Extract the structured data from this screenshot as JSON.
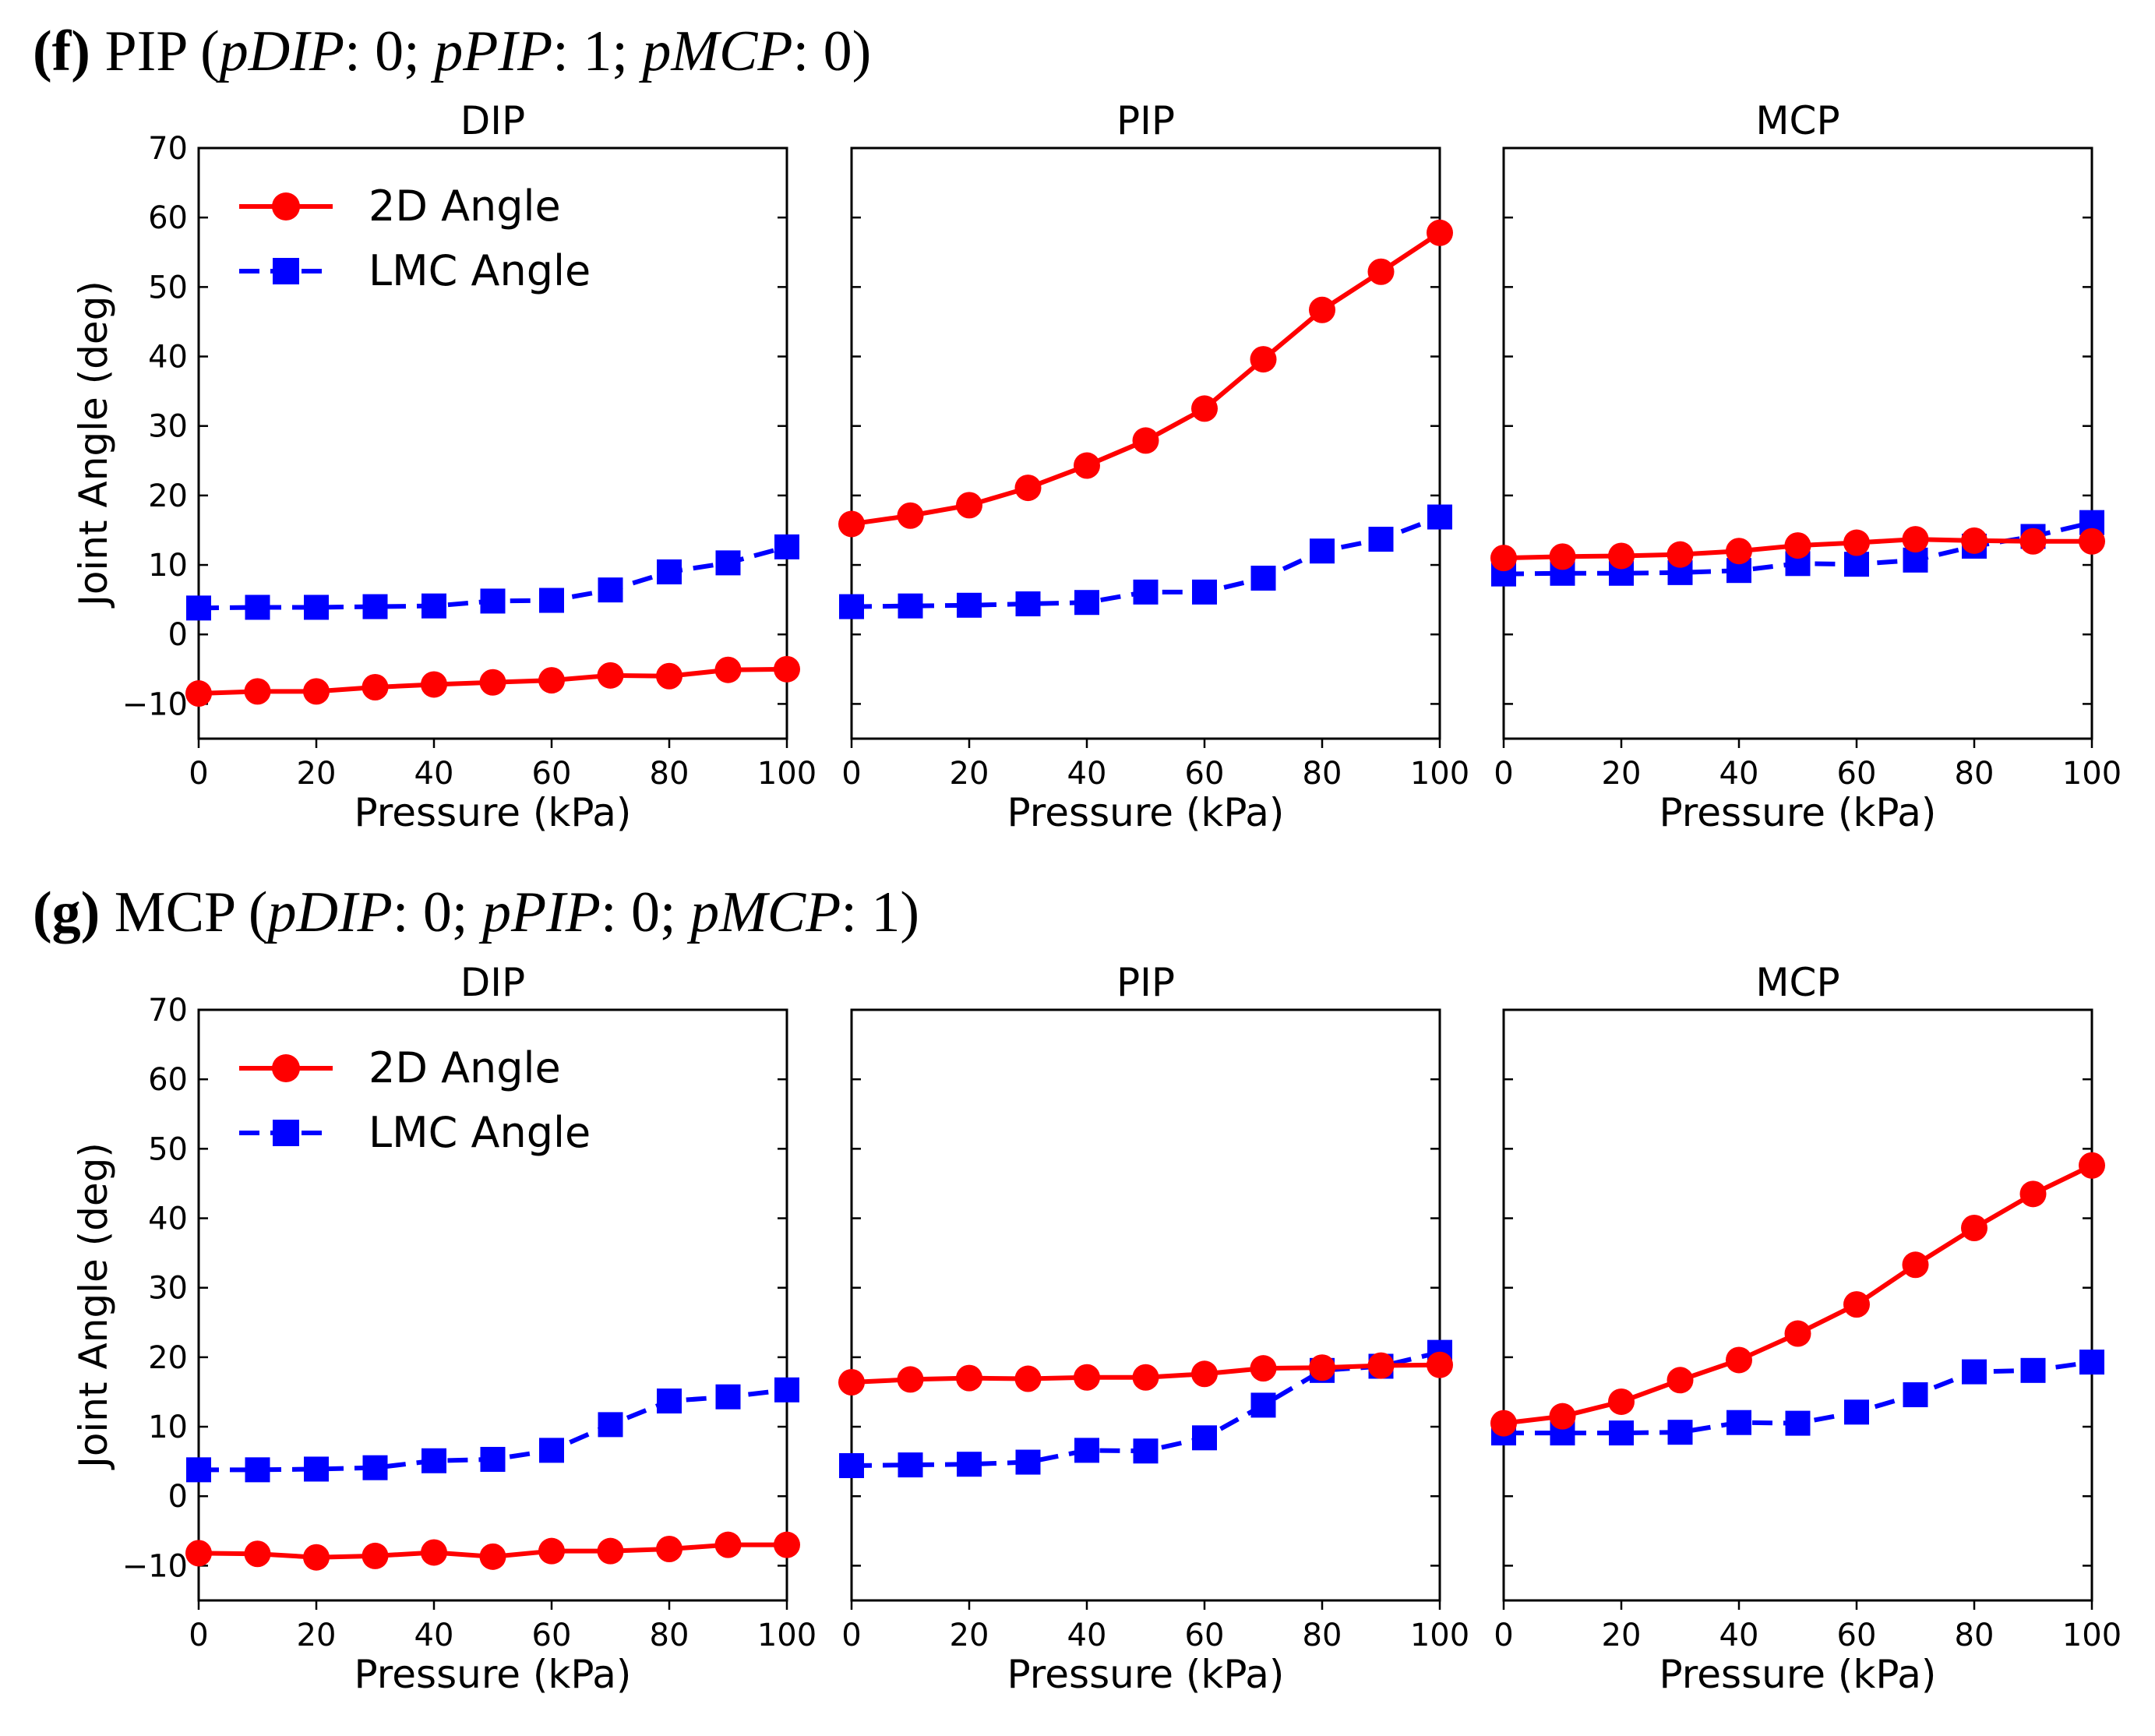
{
  "figure": {
    "colors": {
      "series_2d": "#ff0000",
      "series_lmc": "#0000ff"
    },
    "sections": [
      {
        "label": "(f)",
        "name": "PIP",
        "params_open": " (",
        "params": [
          {
            "var": "pDIP",
            "val": ": 0"
          },
          {
            "var": "pPIP",
            "val": ": 1"
          },
          {
            "var": "pMCP",
            "val": ": 0"
          }
        ],
        "params_sep": ";  ",
        "params_close": ")"
      },
      {
        "label": "(g)",
        "name": "MCP",
        "params_open": " (",
        "params": [
          {
            "var": "pDIP",
            "val": ": 0"
          },
          {
            "var": "pPIP",
            "val": ": 0"
          },
          {
            "var": "pMCP",
            "val": ": 1"
          }
        ],
        "params_sep": ";  ",
        "params_close": ")"
      }
    ],
    "legend": {
      "series_2d": "2D Angle",
      "series_lmc": "LMC Angle"
    }
  },
  "chart_data": [
    {
      "type": "line",
      "section": "(f)",
      "title": "DIP",
      "xlabel": "Pressure (kPa)",
      "ylabel": "Joint Angle (deg)",
      "x": [
        0,
        10,
        20,
        30,
        40,
        50,
        60,
        70,
        80,
        90,
        100
      ],
      "xlim": [
        0,
        100
      ],
      "ylim": [
        -15,
        70
      ],
      "xticks": [
        0,
        20,
        40,
        60,
        80,
        100
      ],
      "yticks": [
        -10,
        0,
        10,
        20,
        30,
        40,
        50,
        60,
        70
      ],
      "legend": "top-left",
      "series": [
        {
          "name": "2D Angle",
          "values": [
            -8.5,
            -8.2,
            -8.2,
            -7.6,
            -7.2,
            -6.9,
            -6.6,
            -5.9,
            -6.0,
            -5.1,
            -5.0
          ]
        },
        {
          "name": "LMC Angle",
          "values": [
            3.8,
            3.9,
            3.9,
            4.0,
            4.1,
            4.8,
            4.9,
            6.4,
            9.0,
            10.3,
            12.6
          ]
        }
      ]
    },
    {
      "type": "line",
      "section": "(f)",
      "title": "PIP",
      "xlabel": "Pressure (kPa)",
      "ylabel": "",
      "x": [
        0,
        10,
        20,
        30,
        40,
        50,
        60,
        70,
        80,
        90,
        100
      ],
      "xlim": [
        0,
        100
      ],
      "ylim": [
        -15,
        70
      ],
      "xticks": [
        0,
        20,
        40,
        60,
        80,
        100
      ],
      "yticks": [],
      "series": [
        {
          "name": "2D Angle",
          "values": [
            15.9,
            17.1,
            18.6,
            21.1,
            24.3,
            27.9,
            32.5,
            39.6,
            46.7,
            52.2,
            57.8
          ]
        },
        {
          "name": "LMC Angle",
          "values": [
            4.0,
            4.1,
            4.2,
            4.4,
            4.6,
            6.1,
            6.1,
            8.1,
            12.0,
            13.7,
            16.9
          ]
        }
      ]
    },
    {
      "type": "line",
      "section": "(f)",
      "title": "MCP",
      "xlabel": "Pressure (kPa)",
      "ylabel": "",
      "x": [
        0,
        10,
        20,
        30,
        40,
        50,
        60,
        70,
        80,
        90,
        100
      ],
      "xlim": [
        0,
        100
      ],
      "ylim": [
        -15,
        70
      ],
      "xticks": [
        0,
        20,
        40,
        60,
        80,
        100
      ],
      "yticks": [],
      "series": [
        {
          "name": "2D Angle",
          "values": [
            11.0,
            11.2,
            11.3,
            11.5,
            12.0,
            12.8,
            13.2,
            13.7,
            13.5,
            13.4,
            13.4
          ]
        },
        {
          "name": "LMC Angle",
          "values": [
            8.7,
            8.8,
            8.8,
            8.9,
            9.2,
            10.2,
            10.1,
            10.7,
            12.7,
            14.1,
            16.1
          ]
        }
      ]
    },
    {
      "type": "line",
      "section": "(g)",
      "title": "DIP",
      "xlabel": "Pressure (kPa)",
      "ylabel": "Joint Angle (deg)",
      "x": [
        0,
        10,
        20,
        30,
        40,
        50,
        60,
        70,
        80,
        90,
        100
      ],
      "xlim": [
        0,
        100
      ],
      "ylim": [
        -15,
        70
      ],
      "xticks": [
        0,
        20,
        40,
        60,
        80,
        100
      ],
      "yticks": [
        -10,
        0,
        10,
        20,
        30,
        40,
        50,
        60,
        70
      ],
      "legend": "top-left",
      "series": [
        {
          "name": "2D Angle",
          "values": [
            -8.2,
            -8.3,
            -8.8,
            -8.6,
            -8.1,
            -8.7,
            -7.9,
            -7.9,
            -7.6,
            -7.0,
            -7.0
          ]
        },
        {
          "name": "LMC Angle",
          "values": [
            3.8,
            3.8,
            3.9,
            4.1,
            5.1,
            5.3,
            6.6,
            10.3,
            13.7,
            14.3,
            15.3
          ]
        }
      ]
    },
    {
      "type": "line",
      "section": "(g)",
      "title": "PIP",
      "xlabel": "Pressure (kPa)",
      "ylabel": "",
      "x": [
        0,
        10,
        20,
        30,
        40,
        50,
        60,
        70,
        80,
        90,
        100
      ],
      "xlim": [
        0,
        100
      ],
      "ylim": [
        -15,
        70
      ],
      "xticks": [
        0,
        20,
        40,
        60,
        80,
        100
      ],
      "yticks": [],
      "series": [
        {
          "name": "2D Angle",
          "values": [
            16.4,
            16.8,
            17.0,
            16.9,
            17.1,
            17.1,
            17.6,
            18.4,
            18.5,
            18.8,
            18.9
          ]
        },
        {
          "name": "LMC Angle",
          "values": [
            4.4,
            4.5,
            4.6,
            4.9,
            6.6,
            6.5,
            8.4,
            13.1,
            18.1,
            18.7,
            20.7
          ]
        }
      ]
    },
    {
      "type": "line",
      "section": "(g)",
      "title": "MCP",
      "xlabel": "Pressure (kPa)",
      "ylabel": "",
      "x": [
        0,
        10,
        20,
        30,
        40,
        50,
        60,
        70,
        80,
        90,
        100
      ],
      "xlim": [
        0,
        100
      ],
      "ylim": [
        -15,
        70
      ],
      "xticks": [
        0,
        20,
        40,
        60,
        80,
        100
      ],
      "yticks": [],
      "series": [
        {
          "name": "2D Angle",
          "values": [
            10.5,
            11.5,
            13.6,
            16.7,
            19.6,
            23.4,
            27.6,
            33.3,
            38.6,
            43.5,
            47.6
          ]
        },
        {
          "name": "LMC Angle",
          "values": [
            9.1,
            9.1,
            9.1,
            9.2,
            10.6,
            10.5,
            12.1,
            14.6,
            17.9,
            18.1,
            19.3
          ]
        }
      ]
    }
  ]
}
